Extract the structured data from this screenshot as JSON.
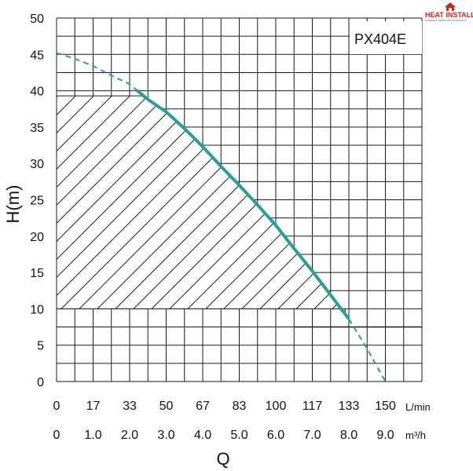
{
  "chart_data": {
    "type": "line",
    "title": "",
    "model": "PX404E",
    "xlabel": "Q",
    "ylabel": "H(m)",
    "x_unit_primary": "L/min",
    "x_unit_secondary": "m³/h",
    "x_ticks_lmin": [
      "0",
      "17",
      "33",
      "50",
      "67",
      "83",
      "100",
      "117",
      "133",
      "150"
    ],
    "x_ticks_m3h": [
      "0",
      "1.0",
      "2.0",
      "3.0",
      "4.0",
      "5.0",
      "6.0",
      "7.0",
      "8.0",
      "9.0"
    ],
    "y_ticks": [
      "0",
      "5",
      "10",
      "15",
      "20",
      "25",
      "30",
      "35",
      "40",
      "45",
      "50"
    ],
    "xlim": [
      0,
      10
    ],
    "ylim": [
      0,
      50
    ],
    "grid": true,
    "curve_color": "#2a9d9b",
    "series": [
      {
        "values": [
          {
            "x": 0.0,
            "y": 45.2
          },
          {
            "x": 0.5,
            "y": 44.4
          },
          {
            "x": 1.0,
            "y": 43.4
          },
          {
            "x": 1.5,
            "y": 42.1
          },
          {
            "x": 2.0,
            "y": 40.9
          },
          {
            "x": 2.5,
            "y": 38.8
          },
          {
            "x": 3.0,
            "y": 37.1
          },
          {
            "x": 3.5,
            "y": 34.8
          },
          {
            "x": 4.0,
            "y": 32.3
          },
          {
            "x": 4.5,
            "y": 29.6
          },
          {
            "x": 5.0,
            "y": 27.0
          },
          {
            "x": 5.5,
            "y": 24.3
          },
          {
            "x": 6.0,
            "y": 21.5
          },
          {
            "x": 6.5,
            "y": 18.3
          },
          {
            "x": 7.0,
            "y": 15.2
          },
          {
            "x": 7.5,
            "y": 11.9
          },
          {
            "x": 8.0,
            "y": 8.6
          },
          {
            "x": 8.5,
            "y": 4.5
          },
          {
            "x": 9.0,
            "y": 0.0
          }
        ]
      }
    ],
    "solid_range": [
      2.2,
      8.0
    ],
    "operating_region": {
      "x_min": 0,
      "x_max": 7.9,
      "y_min": 10,
      "y_top_left": 39.3
    },
    "reference_line": {
      "y": 7.5,
      "x_min": 6.5,
      "x_max": 10
    }
  },
  "logo": {
    "text": "HEAT INSTALL",
    "tagline": "Dostawca Systemów Grzewczych"
  }
}
